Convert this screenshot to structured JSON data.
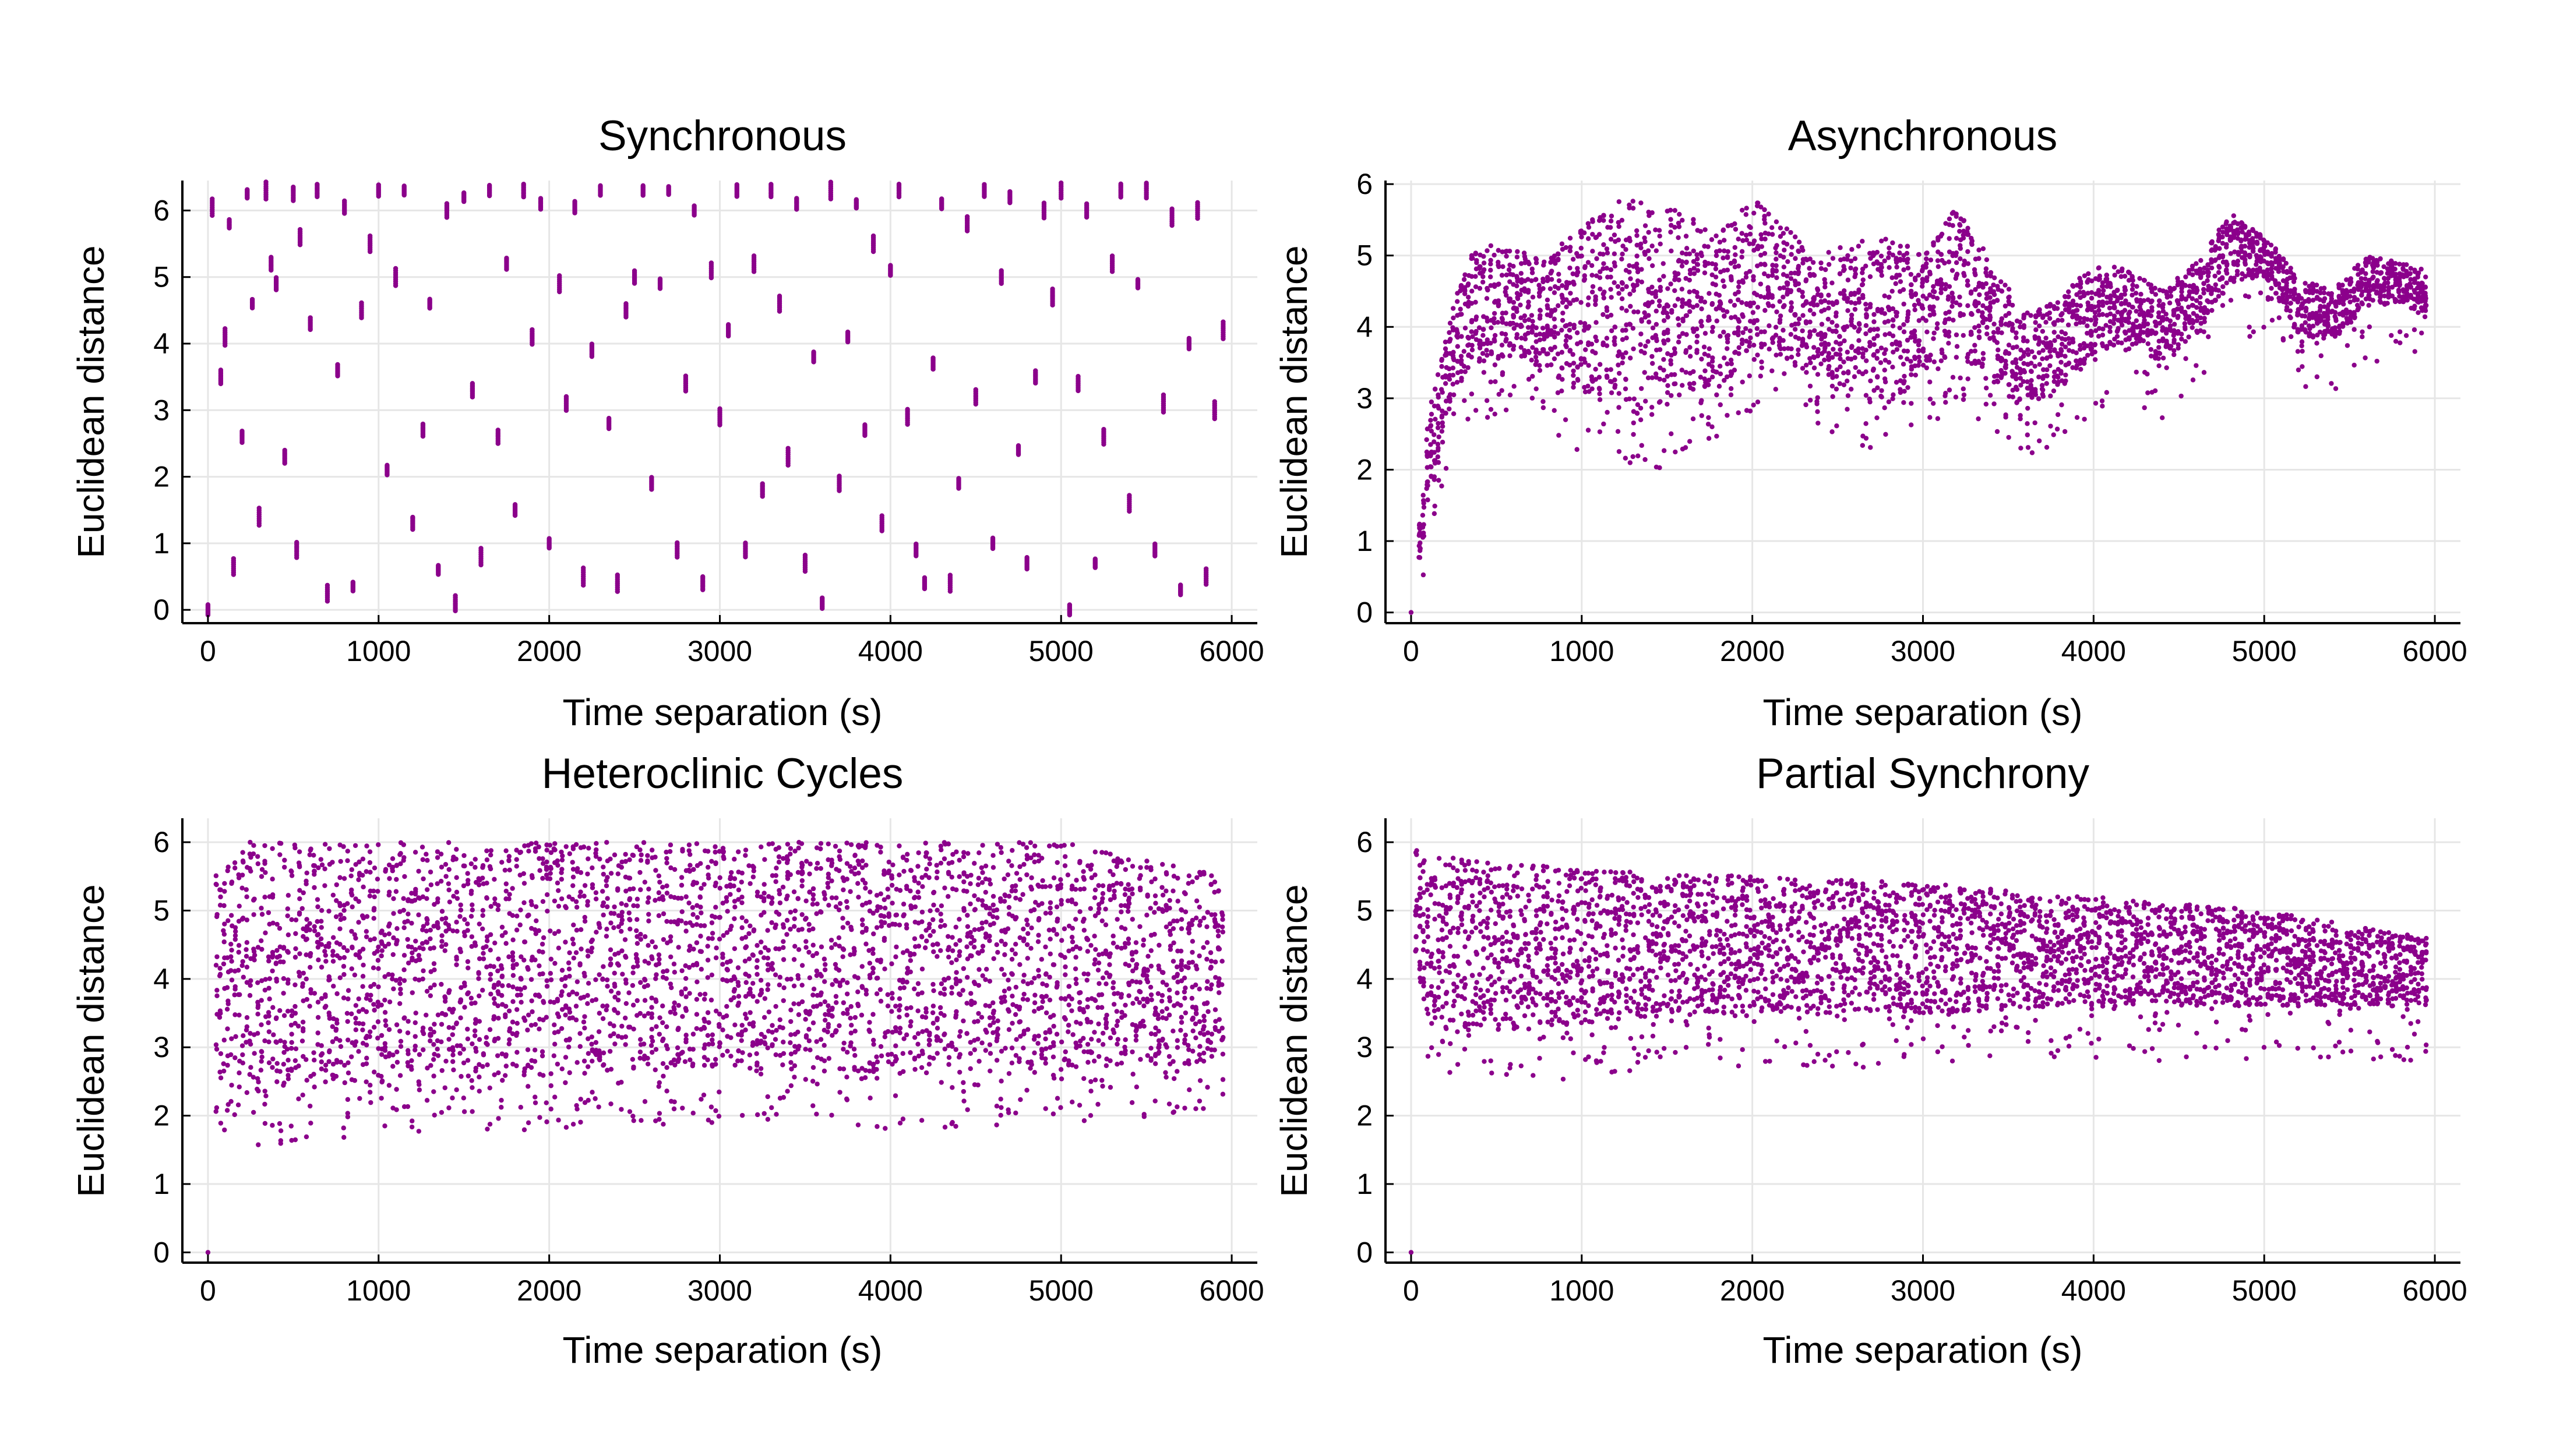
{
  "colors": {
    "points": "#8b008b",
    "grid": "#e6e6e6",
    "axis": "#000000",
    "background": "#ffffff"
  },
  "chart_data": [
    {
      "id": "synchronous",
      "type": "scatter",
      "title": "Synchronous",
      "xlabel": "Time separation (s)",
      "ylabel": "Euclidean distance",
      "xlim": [
        -150,
        6150
      ],
      "ylim": [
        -0.2,
        6.45
      ],
      "xticks": [
        0,
        1000,
        2000,
        3000,
        4000,
        5000,
        6000
      ],
      "yticks": [
        0,
        1,
        2,
        3,
        4,
        5,
        6
      ],
      "grid": true,
      "pattern": "periodic",
      "points": [
        {
          "x": 0,
          "y": 0.0
        },
        {
          "x": 25,
          "y": 6.05
        },
        {
          "x": 75,
          "y": 3.5
        },
        {
          "x": 100,
          "y": 4.1
        },
        {
          "x": 125,
          "y": 5.8
        },
        {
          "x": 150,
          "y": 0.65
        },
        {
          "x": 200,
          "y": 2.6
        },
        {
          "x": 230,
          "y": 6.25
        },
        {
          "x": 260,
          "y": 4.6
        },
        {
          "x": 300,
          "y": 1.4
        },
        {
          "x": 340,
          "y": 6.3
        },
        {
          "x": 370,
          "y": 5.2
        },
        {
          "x": 400,
          "y": 4.9
        },
        {
          "x": 450,
          "y": 2.3
        },
        {
          "x": 500,
          "y": 6.25
        },
        {
          "x": 520,
          "y": 0.9
        },
        {
          "x": 540,
          "y": 5.6
        },
        {
          "x": 600,
          "y": 4.3
        },
        {
          "x": 640,
          "y": 6.3
        },
        {
          "x": 700,
          "y": 0.25
        },
        {
          "x": 760,
          "y": 3.6
        },
        {
          "x": 800,
          "y": 6.05
        },
        {
          "x": 850,
          "y": 0.35
        },
        {
          "x": 900,
          "y": 4.5
        },
        {
          "x": 950,
          "y": 5.5
        },
        {
          "x": 1000,
          "y": 6.3
        },
        {
          "x": 1050,
          "y": 2.1
        },
        {
          "x": 1100,
          "y": 5.0
        },
        {
          "x": 1150,
          "y": 6.3
        },
        {
          "x": 1200,
          "y": 1.3
        },
        {
          "x": 1260,
          "y": 2.7
        },
        {
          "x": 1300,
          "y": 4.6
        },
        {
          "x": 1350,
          "y": 0.6
        },
        {
          "x": 1400,
          "y": 6.0
        },
        {
          "x": 1450,
          "y": 0.1
        },
        {
          "x": 1500,
          "y": 6.2
        },
        {
          "x": 1550,
          "y": 3.3
        },
        {
          "x": 1600,
          "y": 0.8
        },
        {
          "x": 1650,
          "y": 6.3
        },
        {
          "x": 1700,
          "y": 2.6
        },
        {
          "x": 1750,
          "y": 5.2
        },
        {
          "x": 1800,
          "y": 1.5
        },
        {
          "x": 1850,
          "y": 6.3
        },
        {
          "x": 1900,
          "y": 4.1
        },
        {
          "x": 1950,
          "y": 6.1
        },
        {
          "x": 2000,
          "y": 1.0
        },
        {
          "x": 2060,
          "y": 4.9
        },
        {
          "x": 2100,
          "y": 3.1
        },
        {
          "x": 2150,
          "y": 6.05
        },
        {
          "x": 2200,
          "y": 0.5
        },
        {
          "x": 2250,
          "y": 3.9
        },
        {
          "x": 2300,
          "y": 6.3
        },
        {
          "x": 2350,
          "y": 2.8
        },
        {
          "x": 2400,
          "y": 0.4
        },
        {
          "x": 2450,
          "y": 4.5
        },
        {
          "x": 2500,
          "y": 5.0
        },
        {
          "x": 2550,
          "y": 6.3
        },
        {
          "x": 2600,
          "y": 1.9
        },
        {
          "x": 2650,
          "y": 4.9
        },
        {
          "x": 2700,
          "y": 6.3
        },
        {
          "x": 2750,
          "y": 0.9
        },
        {
          "x": 2800,
          "y": 3.4
        },
        {
          "x": 2850,
          "y": 6.0
        },
        {
          "x": 2900,
          "y": 0.4
        },
        {
          "x": 2950,
          "y": 5.1
        },
        {
          "x": 3000,
          "y": 2.9
        },
        {
          "x": 3050,
          "y": 4.2
        },
        {
          "x": 3100,
          "y": 6.3
        },
        {
          "x": 3150,
          "y": 0.9
        },
        {
          "x": 3200,
          "y": 5.2
        },
        {
          "x": 3250,
          "y": 1.8
        },
        {
          "x": 3300,
          "y": 6.3
        },
        {
          "x": 3350,
          "y": 4.6
        },
        {
          "x": 3400,
          "y": 2.3
        },
        {
          "x": 3450,
          "y": 6.1
        },
        {
          "x": 3500,
          "y": 0.7
        },
        {
          "x": 3550,
          "y": 3.8
        },
        {
          "x": 3600,
          "y": 0.1
        },
        {
          "x": 3650,
          "y": 6.3
        },
        {
          "x": 3700,
          "y": 1.9
        },
        {
          "x": 3750,
          "y": 4.1
        },
        {
          "x": 3800,
          "y": 6.1
        },
        {
          "x": 3850,
          "y": 2.7
        },
        {
          "x": 3900,
          "y": 5.5
        },
        {
          "x": 3950,
          "y": 1.3
        },
        {
          "x": 4000,
          "y": 5.1
        },
        {
          "x": 4050,
          "y": 6.3
        },
        {
          "x": 4100,
          "y": 2.9
        },
        {
          "x": 4150,
          "y": 0.9
        },
        {
          "x": 4200,
          "y": 0.4
        },
        {
          "x": 4250,
          "y": 3.7
        },
        {
          "x": 4300,
          "y": 6.1
        },
        {
          "x": 4350,
          "y": 0.4
        },
        {
          "x": 4400,
          "y": 1.9
        },
        {
          "x": 4450,
          "y": 5.8
        },
        {
          "x": 4500,
          "y": 3.2
        },
        {
          "x": 4550,
          "y": 6.3
        },
        {
          "x": 4600,
          "y": 1.0
        },
        {
          "x": 4650,
          "y": 5.0
        },
        {
          "x": 4700,
          "y": 6.2
        },
        {
          "x": 4750,
          "y": 2.4
        },
        {
          "x": 4800,
          "y": 0.7
        },
        {
          "x": 4850,
          "y": 3.5
        },
        {
          "x": 4900,
          "y": 6.0
        },
        {
          "x": 4950,
          "y": 4.7
        },
        {
          "x": 5000,
          "y": 6.3
        },
        {
          "x": 5050,
          "y": 0.0
        },
        {
          "x": 5100,
          "y": 3.4
        },
        {
          "x": 5150,
          "y": 6.0
        },
        {
          "x": 5200,
          "y": 0.7
        },
        {
          "x": 5250,
          "y": 2.6
        },
        {
          "x": 5300,
          "y": 5.2
        },
        {
          "x": 5350,
          "y": 6.3
        },
        {
          "x": 5400,
          "y": 1.6
        },
        {
          "x": 5450,
          "y": 4.9
        },
        {
          "x": 5500,
          "y": 6.3
        },
        {
          "x": 5550,
          "y": 0.9
        },
        {
          "x": 5600,
          "y": 3.1
        },
        {
          "x": 5650,
          "y": 5.9
        },
        {
          "x": 5700,
          "y": 0.3
        },
        {
          "x": 5750,
          "y": 4.0
        },
        {
          "x": 5800,
          "y": 6.0
        },
        {
          "x": 5850,
          "y": 0.5
        },
        {
          "x": 5900,
          "y": 3.0
        },
        {
          "x": 5950,
          "y": 4.2
        }
      ]
    },
    {
      "id": "asynchronous",
      "type": "scatter",
      "title": "Asynchronous",
      "xlabel": "Time separation (s)",
      "ylabel": "Euclidean distance",
      "xlim": [
        -150,
        6150
      ],
      "ylim": [
        -0.15,
        6.05
      ],
      "xticks": [
        0,
        1000,
        2000,
        3000,
        4000,
        5000,
        6000
      ],
      "yticks": [
        0,
        1,
        2,
        3,
        4,
        5,
        6
      ],
      "grid": true,
      "pattern": "band",
      "envelope": [
        {
          "x": 0,
          "low": 0.0,
          "high": 0.1
        },
        {
          "x": 50,
          "low": 0.7,
          "high": 1.3
        },
        {
          "x": 100,
          "low": 1.5,
          "high": 2.8
        },
        {
          "x": 200,
          "low": 2.5,
          "high": 3.8
        },
        {
          "x": 300,
          "low": 3.3,
          "high": 4.8
        },
        {
          "x": 400,
          "low": 3.5,
          "high": 5.2
        },
        {
          "x": 600,
          "low": 3.6,
          "high": 5.1
        },
        {
          "x": 800,
          "low": 3.4,
          "high": 5.0
        },
        {
          "x": 1000,
          "low": 3.0,
          "high": 5.4
        },
        {
          "x": 1200,
          "low": 2.9,
          "high": 5.8
        },
        {
          "x": 1400,
          "low": 2.7,
          "high": 5.8
        },
        {
          "x": 1600,
          "low": 3.1,
          "high": 5.6
        },
        {
          "x": 1800,
          "low": 3.2,
          "high": 5.3
        },
        {
          "x": 2000,
          "low": 3.5,
          "high": 5.8
        },
        {
          "x": 2200,
          "low": 3.5,
          "high": 5.4
        },
        {
          "x": 2400,
          "low": 3.3,
          "high": 5.0
        },
        {
          "x": 2600,
          "low": 3.1,
          "high": 5.2
        },
        {
          "x": 2800,
          "low": 2.8,
          "high": 5.3
        },
        {
          "x": 3000,
          "low": 3.4,
          "high": 5.0
        },
        {
          "x": 3200,
          "low": 3.6,
          "high": 5.7
        },
        {
          "x": 3400,
          "low": 3.3,
          "high": 4.9
        },
        {
          "x": 3600,
          "low": 2.8,
          "high": 4.2
        },
        {
          "x": 3800,
          "low": 3.1,
          "high": 4.4
        },
        {
          "x": 4000,
          "low": 3.6,
          "high": 4.9
        },
        {
          "x": 4200,
          "low": 3.8,
          "high": 4.8
        },
        {
          "x": 4400,
          "low": 3.5,
          "high": 4.5
        },
        {
          "x": 4600,
          "low": 3.9,
          "high": 4.9
        },
        {
          "x": 4800,
          "low": 4.6,
          "high": 5.6
        },
        {
          "x": 5000,
          "low": 4.7,
          "high": 5.3
        },
        {
          "x": 5200,
          "low": 3.9,
          "high": 4.7
        },
        {
          "x": 5400,
          "low": 3.8,
          "high": 4.5
        },
        {
          "x": 5600,
          "low": 4.3,
          "high": 5.0
        },
        {
          "x": 5800,
          "low": 4.3,
          "high": 4.9
        },
        {
          "x": 5950,
          "low": 4.2,
          "high": 4.8
        }
      ]
    },
    {
      "id": "heteroclinic",
      "type": "scatter",
      "title": "Heteroclinic Cycles",
      "xlabel": "Time separation (s)",
      "ylabel": "Euclidean distance",
      "xlim": [
        -150,
        6150
      ],
      "ylim": [
        -0.15,
        6.35
      ],
      "xticks": [
        0,
        1000,
        2000,
        3000,
        4000,
        5000,
        6000
      ],
      "yticks": [
        0,
        1,
        2,
        3,
        4,
        5,
        6
      ],
      "grid": true,
      "pattern": "band",
      "envelope": [
        {
          "x": 0,
          "low": 0.0,
          "high": 0.1
        },
        {
          "x": 50,
          "low": 2.5,
          "high": 5.6
        },
        {
          "x": 150,
          "low": 2.3,
          "high": 6.0
        },
        {
          "x": 1000,
          "low": 2.5,
          "high": 6.0
        },
        {
          "x": 2000,
          "low": 2.6,
          "high": 6.0
        },
        {
          "x": 3000,
          "low": 2.7,
          "high": 6.0
        },
        {
          "x": 4000,
          "low": 2.6,
          "high": 6.0
        },
        {
          "x": 5000,
          "low": 2.7,
          "high": 6.0
        },
        {
          "x": 5950,
          "low": 2.8,
          "high": 5.5
        }
      ]
    },
    {
      "id": "partial",
      "type": "scatter",
      "title": "Partial Synchrony",
      "xlabel": "Time separation (s)",
      "ylabel": "Euclidean distance",
      "xlim": [
        -150,
        6150
      ],
      "ylim": [
        -0.15,
        6.35
      ],
      "xticks": [
        0,
        1000,
        2000,
        3000,
        4000,
        5000,
        6000
      ],
      "yticks": [
        0,
        1,
        2,
        3,
        4,
        5,
        6
      ],
      "grid": true,
      "pattern": "band",
      "envelope": [
        {
          "x": 0,
          "low": 0.0,
          "high": 0.1
        },
        {
          "x": 30,
          "low": 4.4,
          "high": 5.9
        },
        {
          "x": 100,
          "low": 3.2,
          "high": 5.8
        },
        {
          "x": 1000,
          "low": 3.3,
          "high": 5.6
        },
        {
          "x": 2000,
          "low": 3.5,
          "high": 5.5
        },
        {
          "x": 3000,
          "low": 3.5,
          "high": 5.4
        },
        {
          "x": 4000,
          "low": 3.6,
          "high": 5.2
        },
        {
          "x": 5000,
          "low": 3.6,
          "high": 5.0
        },
        {
          "x": 5950,
          "low": 3.6,
          "high": 4.6
        }
      ]
    }
  ]
}
